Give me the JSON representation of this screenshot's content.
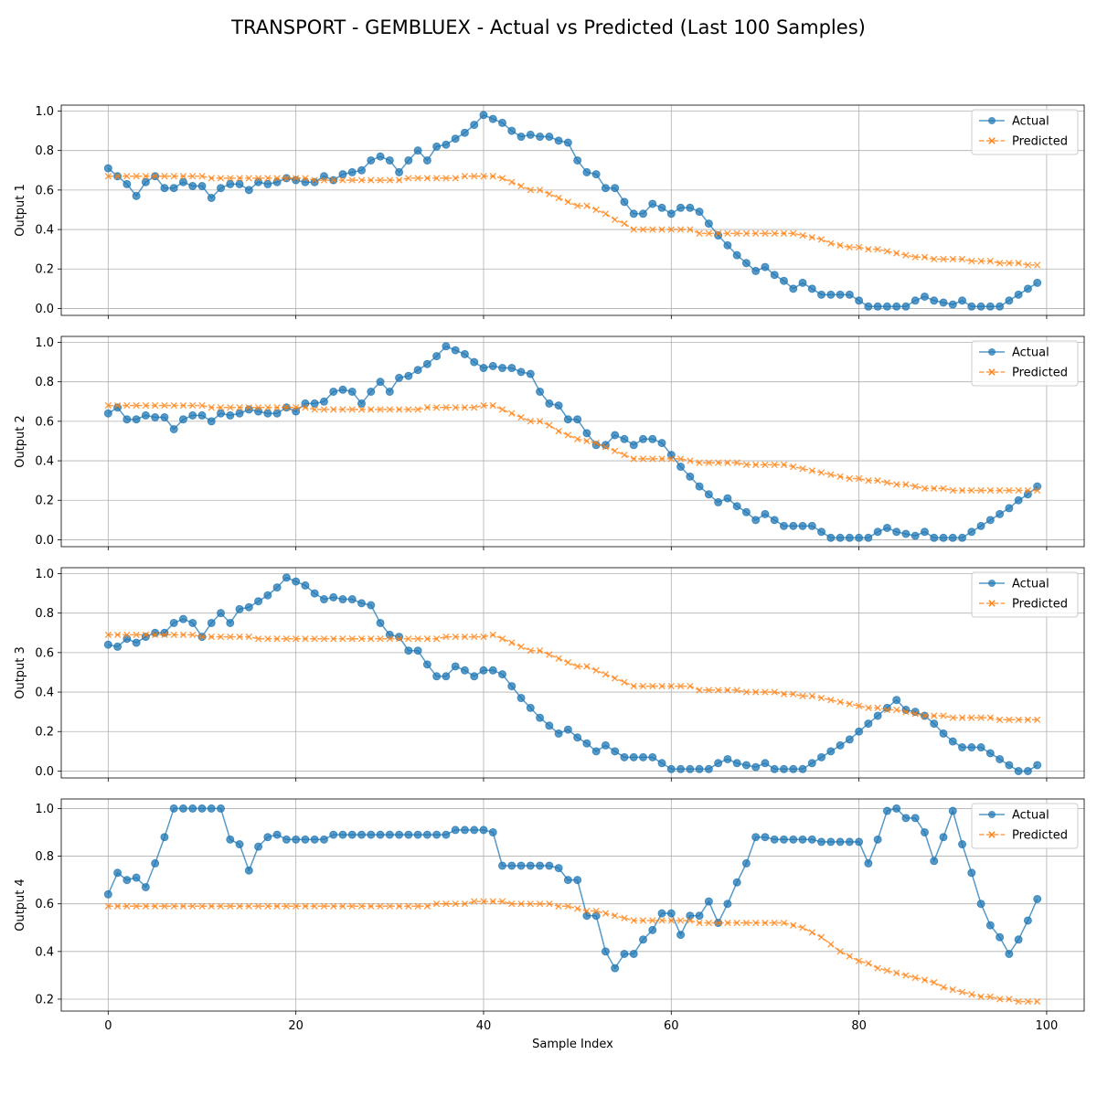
{
  "chart_data": {
    "type": "line",
    "title": "TRANSPORT - GEMBLUEX - Actual vs Predicted (Last 100 Samples)",
    "xlabel": "Sample Index",
    "xlim": [
      -5,
      104
    ],
    "xticks": [
      0,
      20,
      40,
      60,
      80,
      100
    ],
    "grid": true,
    "legend_position": "top-right",
    "colors": {
      "actual": "#1f77b4",
      "predicted": "#ff7f0e"
    },
    "panels": [
      {
        "ylabel": "Output 1",
        "ylim": [
          -0.035,
          1.03
        ],
        "yticks": [
          0.0,
          0.2,
          0.4,
          0.6,
          0.8,
          1.0
        ],
        "series": [
          {
            "name": "Actual",
            "marker": "o",
            "values": [
              0.71,
              0.67,
              0.63,
              0.57,
              0.64,
              0.67,
              0.61,
              0.61,
              0.64,
              0.62,
              0.62,
              0.56,
              0.61,
              0.63,
              0.63,
              0.6,
              0.64,
              0.63,
              0.64,
              0.66,
              0.65,
              0.64,
              0.64,
              0.67,
              0.65,
              0.68,
              0.69,
              0.7,
              0.75,
              0.77,
              0.75,
              0.69,
              0.75,
              0.8,
              0.75,
              0.82,
              0.83,
              0.86,
              0.89,
              0.93,
              0.98,
              0.96,
              0.94,
              0.9,
              0.87,
              0.88,
              0.87,
              0.87,
              0.85,
              0.84,
              0.75,
              0.69,
              0.68,
              0.61,
              0.61,
              0.54,
              0.48,
              0.48,
              0.53,
              0.51,
              0.48,
              0.51,
              0.51,
              0.49,
              0.43,
              0.37,
              0.32,
              0.27,
              0.23,
              0.19,
              0.21,
              0.17,
              0.14,
              0.1,
              0.13,
              0.1,
              0.07,
              0.07,
              0.07,
              0.07,
              0.04,
              0.01,
              0.01,
              0.01,
              0.01,
              0.01,
              0.04,
              0.06,
              0.04,
              0.03,
              0.02,
              0.04,
              0.01,
              0.01,
              0.01,
              0.01,
              0.04,
              0.07,
              0.1,
              0.13
            ]
          },
          {
            "name": "Predicted",
            "marker": "x",
            "values": [
              0.67,
              0.67,
              0.67,
              0.67,
              0.67,
              0.67,
              0.67,
              0.67,
              0.67,
              0.67,
              0.67,
              0.66,
              0.66,
              0.66,
              0.66,
              0.66,
              0.66,
              0.66,
              0.66,
              0.66,
              0.66,
              0.66,
              0.65,
              0.65,
              0.65,
              0.65,
              0.65,
              0.65,
              0.65,
              0.65,
              0.65,
              0.65,
              0.66,
              0.66,
              0.66,
              0.66,
              0.66,
              0.66,
              0.67,
              0.67,
              0.67,
              0.67,
              0.66,
              0.64,
              0.62,
              0.6,
              0.6,
              0.58,
              0.56,
              0.54,
              0.52,
              0.52,
              0.5,
              0.48,
              0.45,
              0.43,
              0.4,
              0.4,
              0.4,
              0.4,
              0.4,
              0.4,
              0.4,
              0.38,
              0.38,
              0.38,
              0.38,
              0.38,
              0.38,
              0.38,
              0.38,
              0.38,
              0.38,
              0.38,
              0.37,
              0.36,
              0.35,
              0.33,
              0.32,
              0.31,
              0.31,
              0.3,
              0.3,
              0.29,
              0.28,
              0.27,
              0.26,
              0.26,
              0.25,
              0.25,
              0.25,
              0.25,
              0.24,
              0.24,
              0.24,
              0.23,
              0.23,
              0.23,
              0.22,
              0.22
            ]
          }
        ]
      },
      {
        "ylabel": "Output 2",
        "ylim": [
          -0.035,
          1.03
        ],
        "yticks": [
          0.0,
          0.2,
          0.4,
          0.6,
          0.8,
          1.0
        ],
        "series": [
          {
            "name": "Actual",
            "marker": "o",
            "values": [
              0.64,
              0.67,
              0.61,
              0.61,
              0.63,
              0.62,
              0.62,
              0.56,
              0.61,
              0.63,
              0.63,
              0.6,
              0.64,
              0.63,
              0.64,
              0.66,
              0.65,
              0.64,
              0.64,
              0.67,
              0.65,
              0.69,
              0.69,
              0.7,
              0.75,
              0.76,
              0.75,
              0.69,
              0.75,
              0.8,
              0.75,
              0.82,
              0.83,
              0.86,
              0.89,
              0.93,
              0.98,
              0.96,
              0.94,
              0.9,
              0.87,
              0.88,
              0.87,
              0.87,
              0.85,
              0.84,
              0.75,
              0.69,
              0.68,
              0.61,
              0.61,
              0.54,
              0.48,
              0.48,
              0.53,
              0.51,
              0.48,
              0.51,
              0.51,
              0.49,
              0.43,
              0.37,
              0.32,
              0.27,
              0.23,
              0.19,
              0.21,
              0.17,
              0.14,
              0.1,
              0.13,
              0.1,
              0.07,
              0.07,
              0.07,
              0.07,
              0.04,
              0.01,
              0.01,
              0.01,
              0.01,
              0.01,
              0.04,
              0.06,
              0.04,
              0.03,
              0.02,
              0.04,
              0.01,
              0.01,
              0.01,
              0.01,
              0.04,
              0.07,
              0.1,
              0.13,
              0.16,
              0.2,
              0.23,
              0.27
            ]
          },
          {
            "name": "Predicted",
            "marker": "x",
            "values": [
              0.68,
              0.68,
              0.68,
              0.68,
              0.68,
              0.68,
              0.68,
              0.68,
              0.68,
              0.68,
              0.68,
              0.67,
              0.67,
              0.67,
              0.67,
              0.67,
              0.67,
              0.67,
              0.67,
              0.67,
              0.67,
              0.67,
              0.66,
              0.66,
              0.66,
              0.66,
              0.66,
              0.66,
              0.66,
              0.66,
              0.66,
              0.66,
              0.66,
              0.66,
              0.67,
              0.67,
              0.67,
              0.67,
              0.67,
              0.67,
              0.68,
              0.68,
              0.66,
              0.64,
              0.62,
              0.6,
              0.6,
              0.58,
              0.55,
              0.53,
              0.51,
              0.5,
              0.49,
              0.47,
              0.45,
              0.43,
              0.41,
              0.41,
              0.41,
              0.41,
              0.41,
              0.41,
              0.4,
              0.39,
              0.39,
              0.39,
              0.39,
              0.39,
              0.38,
              0.38,
              0.38,
              0.38,
              0.38,
              0.37,
              0.36,
              0.35,
              0.34,
              0.33,
              0.32,
              0.31,
              0.31,
              0.3,
              0.3,
              0.29,
              0.28,
              0.28,
              0.27,
              0.26,
              0.26,
              0.26,
              0.25,
              0.25,
              0.25,
              0.25,
              0.25,
              0.25,
              0.25,
              0.25,
              0.25,
              0.25
            ]
          }
        ]
      },
      {
        "ylabel": "Output 3",
        "ylim": [
          -0.035,
          1.03
        ],
        "yticks": [
          0.0,
          0.2,
          0.4,
          0.6,
          0.8,
          1.0
        ],
        "series": [
          {
            "name": "Actual",
            "marker": "o",
            "values": [
              0.64,
              0.63,
              0.67,
              0.65,
              0.68,
              0.7,
              0.7,
              0.75,
              0.77,
              0.75,
              0.68,
              0.75,
              0.8,
              0.75,
              0.82,
              0.83,
              0.86,
              0.89,
              0.93,
              0.98,
              0.96,
              0.94,
              0.9,
              0.87,
              0.88,
              0.87,
              0.87,
              0.85,
              0.84,
              0.75,
              0.69,
              0.68,
              0.61,
              0.61,
              0.54,
              0.48,
              0.48,
              0.53,
              0.51,
              0.48,
              0.51,
              0.51,
              0.49,
              0.43,
              0.37,
              0.32,
              0.27,
              0.23,
              0.19,
              0.21,
              0.17,
              0.14,
              0.1,
              0.13,
              0.1,
              0.07,
              0.07,
              0.07,
              0.07,
              0.04,
              0.01,
              0.01,
              0.01,
              0.01,
              0.01,
              0.04,
              0.06,
              0.04,
              0.03,
              0.02,
              0.04,
              0.01,
              0.01,
              0.01,
              0.01,
              0.04,
              0.07,
              0.1,
              0.13,
              0.16,
              0.2,
              0.24,
              0.28,
              0.32,
              0.36,
              0.31,
              0.3,
              0.28,
              0.24,
              0.19,
              0.15,
              0.12,
              0.12,
              0.12,
              0.09,
              0.06,
              0.03,
              0.0,
              0.0,
              0.03
            ]
          },
          {
            "name": "Predicted",
            "marker": "x",
            "values": [
              0.69,
              0.69,
              0.69,
              0.69,
              0.69,
              0.69,
              0.69,
              0.69,
              0.69,
              0.69,
              0.68,
              0.68,
              0.68,
              0.68,
              0.68,
              0.68,
              0.67,
              0.67,
              0.67,
              0.67,
              0.67,
              0.67,
              0.67,
              0.67,
              0.67,
              0.67,
              0.67,
              0.67,
              0.67,
              0.67,
              0.67,
              0.67,
              0.67,
              0.67,
              0.67,
              0.67,
              0.68,
              0.68,
              0.68,
              0.68,
              0.68,
              0.69,
              0.67,
              0.65,
              0.63,
              0.61,
              0.61,
              0.59,
              0.57,
              0.55,
              0.53,
              0.53,
              0.51,
              0.49,
              0.47,
              0.45,
              0.43,
              0.43,
              0.43,
              0.43,
              0.43,
              0.43,
              0.43,
              0.41,
              0.41,
              0.41,
              0.41,
              0.41,
              0.4,
              0.4,
              0.4,
              0.4,
              0.39,
              0.39,
              0.38,
              0.38,
              0.37,
              0.36,
              0.35,
              0.34,
              0.33,
              0.32,
              0.32,
              0.31,
              0.31,
              0.3,
              0.29,
              0.28,
              0.28,
              0.28,
              0.27,
              0.27,
              0.27,
              0.27,
              0.27,
              0.26,
              0.26,
              0.26,
              0.26,
              0.26
            ]
          }
        ]
      },
      {
        "ylabel": "Output 4",
        "ylim": [
          0.15,
          1.04
        ],
        "yticks": [
          0.2,
          0.4,
          0.6,
          0.8,
          1.0
        ],
        "series": [
          {
            "name": "Actual",
            "marker": "o",
            "values": [
              0.64,
              0.73,
              0.7,
              0.71,
              0.67,
              0.77,
              0.88,
              1.0,
              1.0,
              1.0,
              1.0,
              1.0,
              1.0,
              0.87,
              0.85,
              0.74,
              0.84,
              0.88,
              0.89,
              0.87,
              0.87,
              0.87,
              0.87,
              0.87,
              0.89,
              0.89,
              0.89,
              0.89,
              0.89,
              0.89,
              0.89,
              0.89,
              0.89,
              0.89,
              0.89,
              0.89,
              0.89,
              0.91,
              0.91,
              0.91,
              0.91,
              0.9,
              0.76,
              0.76,
              0.76,
              0.76,
              0.76,
              0.76,
              0.75,
              0.7,
              0.7,
              0.55,
              0.55,
              0.4,
              0.33,
              0.39,
              0.39,
              0.45,
              0.49,
              0.56,
              0.56,
              0.47,
              0.55,
              0.55,
              0.61,
              0.52,
              0.6,
              0.69,
              0.77,
              0.88,
              0.88,
              0.87,
              0.87,
              0.87,
              0.87,
              0.87,
              0.86,
              0.86,
              0.86,
              0.86,
              0.86,
              0.77,
              0.87,
              0.99,
              1.0,
              0.96,
              0.96,
              0.9,
              0.78,
              0.88,
              0.99,
              0.85,
              0.73,
              0.6,
              0.51,
              0.46,
              0.39,
              0.45,
              0.53,
              0.62
            ]
          },
          {
            "name": "Predicted",
            "marker": "x",
            "values": [
              0.59,
              0.59,
              0.59,
              0.59,
              0.59,
              0.59,
              0.59,
              0.59,
              0.59,
              0.59,
              0.59,
              0.59,
              0.59,
              0.59,
              0.59,
              0.59,
              0.59,
              0.59,
              0.59,
              0.59,
              0.59,
              0.59,
              0.59,
              0.59,
              0.59,
              0.59,
              0.59,
              0.59,
              0.59,
              0.59,
              0.59,
              0.59,
              0.59,
              0.59,
              0.59,
              0.6,
              0.6,
              0.6,
              0.6,
              0.61,
              0.61,
              0.61,
              0.61,
              0.6,
              0.6,
              0.6,
              0.6,
              0.6,
              0.59,
              0.59,
              0.58,
              0.57,
              0.57,
              0.56,
              0.55,
              0.54,
              0.53,
              0.53,
              0.53,
              0.53,
              0.53,
              0.53,
              0.53,
              0.52,
              0.52,
              0.52,
              0.52,
              0.52,
              0.52,
              0.52,
              0.52,
              0.52,
              0.52,
              0.51,
              0.5,
              0.48,
              0.46,
              0.43,
              0.4,
              0.38,
              0.36,
              0.35,
              0.33,
              0.32,
              0.31,
              0.3,
              0.29,
              0.28,
              0.27,
              0.25,
              0.24,
              0.23,
              0.22,
              0.21,
              0.21,
              0.2,
              0.2,
              0.19,
              0.19,
              0.19
            ]
          }
        ]
      }
    ]
  }
}
